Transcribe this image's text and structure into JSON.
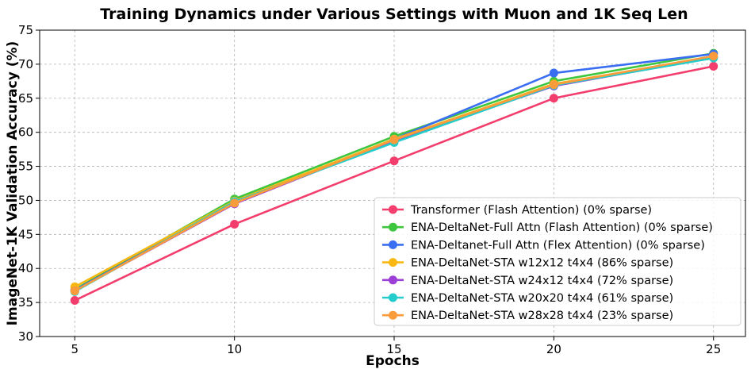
{
  "chart_data": {
    "type": "line",
    "title": "Training Dynamics under Various Settings with Muon and 1K Seq Len",
    "xlabel": "Epochs",
    "ylabel": "ImageNet-1K Validation Accuracy (%)",
    "x": [
      5,
      10,
      15,
      20,
      25
    ],
    "xticks": [
      "5",
      "10",
      "15",
      "20",
      "25"
    ],
    "yticks": [
      "30",
      "35",
      "40",
      "45",
      "50",
      "55",
      "60",
      "65",
      "70",
      "75"
    ],
    "xlim": [
      3.9,
      26.0
    ],
    "ylim": [
      30,
      75
    ],
    "grid": true,
    "legend_position": "lower-right",
    "series": [
      {
        "name": "Transformer (Flash Attention) (0% sparse)",
        "color": "#f23d6d",
        "values": [
          35.3,
          46.5,
          55.8,
          65.0,
          69.7
        ]
      },
      {
        "name": "ENA-DeltaNet-Full Attn (Flash Attention) (0% sparse)",
        "color": "#3ec63e",
        "values": [
          36.9,
          50.2,
          59.4,
          67.5,
          71.6
        ]
      },
      {
        "name": "ENA-Deltanet-Full Attn (Flex Attention) (0% sparse)",
        "color": "#3a6ef2",
        "values": [
          36.8,
          49.7,
          59.0,
          68.7,
          71.5
        ]
      },
      {
        "name": "ENA-DeltaNet-STA w12x12 t4x4 (86% sparse)",
        "color": "#f9b712",
        "values": [
          37.3,
          49.9,
          59.0,
          67.1,
          71.1
        ]
      },
      {
        "name": "ENA-DeltaNet-STA w24x12 t4x4 (72% sparse)",
        "color": "#9b3fd6",
        "values": [
          36.7,
          49.5,
          58.8,
          66.8,
          71.0
        ]
      },
      {
        "name": "ENA-DeltaNet-STA w20x20 t4x4 (61% sparse)",
        "color": "#24cccc",
        "values": [
          36.6,
          49.8,
          58.5,
          66.9,
          70.9
        ]
      },
      {
        "name": "ENA-DeltaNet-STA w28x28 t4x4 (23% sparse)",
        "color": "#fb9c3c",
        "values": [
          36.7,
          49.6,
          58.9,
          67.0,
          71.2
        ]
      }
    ]
  }
}
